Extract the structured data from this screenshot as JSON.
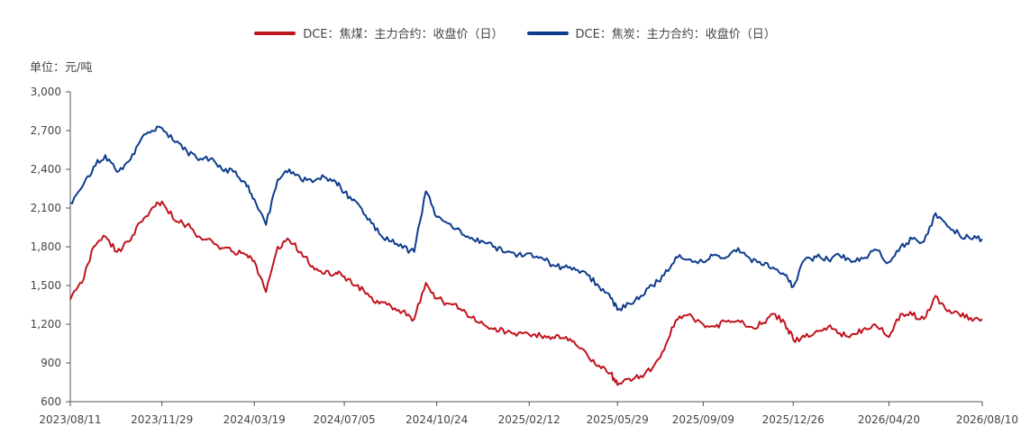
{
  "chart_data": {
    "type": "line",
    "title": "",
    "unit_label": "单位：元/吨",
    "xlabel": "",
    "ylabel": "",
    "ylim": [
      600,
      3000
    ],
    "yticks": [
      600,
      900,
      1200,
      1500,
      1800,
      2100,
      2400,
      2700,
      3000
    ],
    "ytick_labels": [
      "600",
      "900",
      "1,200",
      "1,500",
      "1,800",
      "2,100",
      "2,400",
      "2,700",
      "3,000"
    ],
    "xlim": [
      "2023-08-11",
      "2026-08-10"
    ],
    "xticks": [
      "2023-08-11",
      "2023-11-29",
      "2024-03-19",
      "2024-07-05",
      "2024-10-24",
      "2025-02-12",
      "2025-05-29",
      "2025-09-09",
      "2025-12-26",
      "2026-04-20",
      "2026-08-10"
    ],
    "xtick_labels": [
      "2023/08/11",
      "2023/11/29",
      "2024/03/19",
      "2024/07/05",
      "2024/10/24",
      "2025/02/12",
      "2025/05/29",
      "2025/09/09",
      "2025/12/26",
      "2026/04/20",
      "2026/08/10"
    ],
    "grid": false,
    "legend_position": "top-center",
    "series": [
      {
        "name": "DCE：焦煤：主力合约：收盘价（日）",
        "color": "#c0141e",
        "x": [
          "2023-08-11",
          "2023-08-25",
          "2023-09-08",
          "2023-09-22",
          "2023-10-06",
          "2023-10-20",
          "2023-11-03",
          "2023-11-17",
          "2023-11-29",
          "2023-12-15",
          "2023-12-29",
          "2024-01-12",
          "2024-01-26",
          "2024-02-09",
          "2024-02-23",
          "2024-03-08",
          "2024-03-19",
          "2024-04-02",
          "2024-04-16",
          "2024-04-30",
          "2024-05-14",
          "2024-05-28",
          "2024-06-11",
          "2024-06-25",
          "2024-07-05",
          "2024-07-19",
          "2024-08-02",
          "2024-08-16",
          "2024-08-30",
          "2024-09-13",
          "2024-09-27",
          "2024-10-11",
          "2024-10-24",
          "2024-11-07",
          "2024-11-21",
          "2024-12-05",
          "2024-12-19",
          "2025-01-02",
          "2025-01-16",
          "2025-01-30",
          "2025-02-12",
          "2025-02-26",
          "2025-03-12",
          "2025-03-26",
          "2025-04-09",
          "2025-04-23",
          "2025-05-07",
          "2025-05-21",
          "2025-05-29",
          "2025-06-12",
          "2025-06-26",
          "2025-07-10",
          "2025-07-24",
          "2025-08-07",
          "2025-08-21",
          "2025-09-09",
          "2025-09-23",
          "2025-10-07",
          "2025-10-21",
          "2025-11-04",
          "2025-11-18",
          "2025-12-02",
          "2025-12-16",
          "2025-12-26",
          "2026-01-09",
          "2026-01-23",
          "2026-02-06",
          "2026-02-20",
          "2026-03-06",
          "2026-03-20",
          "2026-04-03",
          "2026-04-20",
          "2026-05-04",
          "2026-05-18",
          "2026-06-01",
          "2026-06-15",
          "2026-06-29",
          "2026-07-13",
          "2026-07-27",
          "2026-08-10"
        ],
        "values": [
          1390,
          1520,
          1800,
          1880,
          1760,
          1840,
          1990,
          2100,
          2150,
          2000,
          1970,
          1880,
          1860,
          1790,
          1760,
          1740,
          1690,
          1450,
          1800,
          1850,
          1760,
          1650,
          1590,
          1600,
          1570,
          1500,
          1440,
          1360,
          1340,
          1300,
          1240,
          1520,
          1400,
          1360,
          1320,
          1250,
          1200,
          1170,
          1140,
          1130,
          1120,
          1110,
          1100,
          1090,
          1040,
          960,
          880,
          820,
          730,
          780,
          800,
          860,
          1000,
          1230,
          1270,
          1200,
          1180,
          1220,
          1230,
          1180,
          1200,
          1280,
          1210,
          1080,
          1100,
          1150,
          1180,
          1130,
          1120,
          1160,
          1200,
          1100,
          1280,
          1270,
          1240,
          1420,
          1300,
          1280,
          1250,
          1240
        ]
      },
      {
        "name": "DCE：焦炭：主力合约：收盘价（日）",
        "color": "#0e3c8c",
        "x": [
          "2023-08-11",
          "2023-08-25",
          "2023-09-08",
          "2023-09-22",
          "2023-10-06",
          "2023-10-20",
          "2023-11-03",
          "2023-11-17",
          "2023-11-29",
          "2023-12-15",
          "2023-12-29",
          "2024-01-12",
          "2024-01-26",
          "2024-02-09",
          "2024-02-23",
          "2024-03-08",
          "2024-03-19",
          "2024-04-02",
          "2024-04-16",
          "2024-04-30",
          "2024-05-14",
          "2024-05-28",
          "2024-06-11",
          "2024-06-25",
          "2024-07-05",
          "2024-07-19",
          "2024-08-02",
          "2024-08-16",
          "2024-08-30",
          "2024-09-13",
          "2024-09-27",
          "2024-10-11",
          "2024-10-24",
          "2024-11-07",
          "2024-11-21",
          "2024-12-05",
          "2024-12-19",
          "2025-01-02",
          "2025-01-16",
          "2025-01-30",
          "2025-02-12",
          "2025-02-26",
          "2025-03-12",
          "2025-03-26",
          "2025-04-09",
          "2025-04-23",
          "2025-05-07",
          "2025-05-21",
          "2025-05-29",
          "2025-06-12",
          "2025-06-26",
          "2025-07-10",
          "2025-07-24",
          "2025-08-07",
          "2025-08-21",
          "2025-09-09",
          "2025-09-23",
          "2025-10-07",
          "2025-10-21",
          "2025-11-04",
          "2025-11-18",
          "2025-12-02",
          "2025-12-16",
          "2025-12-26",
          "2026-01-09",
          "2026-01-23",
          "2026-02-06",
          "2026-02-20",
          "2026-03-06",
          "2026-03-20",
          "2026-04-03",
          "2026-04-20",
          "2026-05-04",
          "2026-05-18",
          "2026-06-01",
          "2026-06-15",
          "2026-06-29",
          "2026-07-13",
          "2026-07-27",
          "2026-08-10"
        ],
        "values": [
          2140,
          2260,
          2420,
          2510,
          2380,
          2460,
          2620,
          2700,
          2720,
          2610,
          2540,
          2470,
          2480,
          2400,
          2380,
          2300,
          2170,
          1970,
          2320,
          2400,
          2320,
          2300,
          2340,
          2300,
          2220,
          2150,
          2010,
          1900,
          1840,
          1790,
          1760,
          2230,
          2030,
          1980,
          1930,
          1870,
          1840,
          1800,
          1760,
          1740,
          1750,
          1720,
          1660,
          1640,
          1620,
          1580,
          1490,
          1400,
          1310,
          1360,
          1420,
          1500,
          1580,
          1720,
          1700,
          1680,
          1740,
          1720,
          1790,
          1710,
          1660,
          1640,
          1580,
          1490,
          1700,
          1720,
          1700,
          1730,
          1680,
          1710,
          1780,
          1680,
          1800,
          1860,
          1840,
          2060,
          1960,
          1900,
          1860,
          1860
        ]
      }
    ]
  }
}
